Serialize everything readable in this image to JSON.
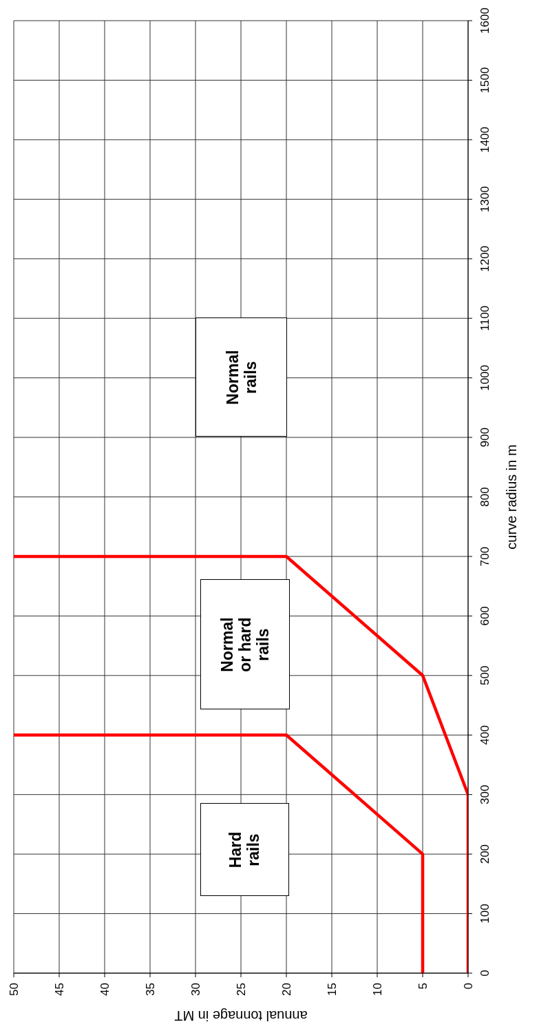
{
  "chart_data": {
    "type": "line",
    "xlabel": "annual tonnage in MT",
    "ylabel": "curve radius in m",
    "xlim": [
      50,
      0
    ],
    "xticks": [
      50,
      45,
      40,
      35,
      30,
      25,
      20,
      15,
      10,
      5,
      0
    ],
    "ylim": [
      0,
      1600
    ],
    "yticks": [
      0,
      100,
      200,
      300,
      400,
      500,
      600,
      700,
      800,
      900,
      1000,
      1100,
      1200,
      1300,
      1400,
      1500,
      1600
    ],
    "grid": true,
    "legend": false,
    "marker": "none",
    "line_style": "solid",
    "series": [
      {
        "color": "#ff0000",
        "x": [
          0,
          0,
          5,
          20,
          50
        ],
        "values": [
          0,
          300,
          500,
          700,
          700
        ]
      },
      {
        "color": "#ff0000",
        "x": [
          5,
          5,
          20,
          50
        ],
        "values": [
          0,
          200,
          400,
          400
        ]
      }
    ],
    "annotations": [
      "Hard rails",
      "Normal or hard rails",
      "Normal rails"
    ]
  }
}
